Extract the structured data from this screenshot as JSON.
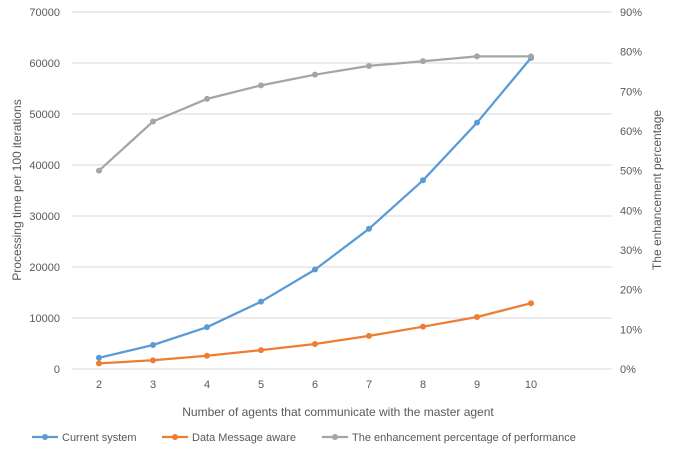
{
  "chart_data": {
    "type": "line",
    "title": "",
    "xlabel": "Number of agents that communicate with the master agent",
    "ylabel": "Processing time per 100 iterations",
    "y2label": "The enhancement percentage",
    "categories": [
      "2",
      "3",
      "4",
      "5",
      "6",
      "7",
      "8",
      "9",
      "10"
    ],
    "ylim": [
      0,
      70000
    ],
    "yticks": [
      "0",
      "10000",
      "20000",
      "30000",
      "40000",
      "50000",
      "60000",
      "70000"
    ],
    "y2lim": [
      0,
      90
    ],
    "y2ticks": [
      "0%",
      "10%",
      "20%",
      "30%",
      "40%",
      "50%",
      "60%",
      "70%",
      "80%",
      "90%"
    ],
    "grid": true,
    "legend_position": "bottom",
    "series": [
      {
        "name": "Current system",
        "axis": "left",
        "color": "#5B9BD5",
        "values": [
          2200,
          4700,
          8200,
          13200,
          19500,
          27500,
          37000,
          48300,
          61000
        ]
      },
      {
        "name": "Data Message aware",
        "axis": "left",
        "color": "#ED7D31",
        "values": [
          1100,
          1700,
          2600,
          3700,
          4900,
          6500,
          8300,
          10200,
          12900
        ]
      },
      {
        "name": "The enhancement percentage of performance",
        "axis": "right",
        "color": "#A5A5A5",
        "values": [
          50,
          62.4,
          68.1,
          71.5,
          74.2,
          76.4,
          77.6,
          78.8,
          78.8
        ]
      }
    ]
  }
}
